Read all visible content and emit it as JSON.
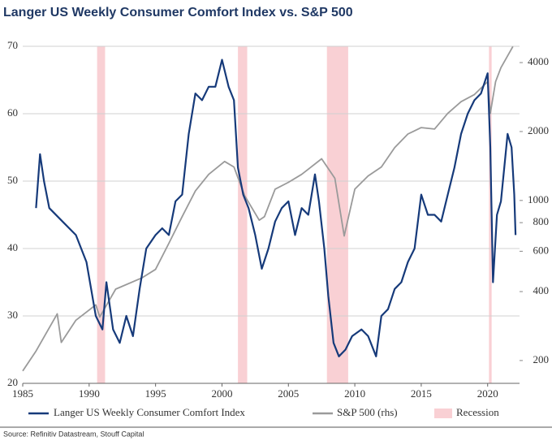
{
  "chart_data": {
    "type": "line",
    "title": "Langer US Weekly Consumer Comfort Index vs. S&P 500",
    "source": "Source: Refinitiv Datastream, Stouff Capital",
    "xlim": [
      1985,
      2022.4
    ],
    "xticks": [
      1985,
      1990,
      1995,
      2000,
      2005,
      2010,
      2015,
      2020
    ],
    "ylim": [
      20,
      70
    ],
    "yticks": [
      20,
      30,
      40,
      50,
      60,
      70
    ],
    "y2lim": [
      159,
      4712
    ],
    "y2ticks": [
      200,
      400,
      600,
      800,
      1000,
      2000,
      4000
    ],
    "y2log": true,
    "grid": true,
    "recession_name": "Recession",
    "recession_color": "#f9d0d4",
    "recessions": [
      [
        1990.6,
        1991.2
      ],
      [
        2001.2,
        2001.9
      ],
      [
        2007.9,
        2009.5
      ],
      [
        2020.1,
        2020.3
      ]
    ],
    "series": [
      {
        "name": "Langer US Weekly Consumer Comfort Index",
        "color": "#163a7a",
        "x": [
          1986.0,
          1986.3,
          1986.6,
          1987,
          1988,
          1989,
          1989.8,
          1990.5,
          1991.0,
          1991.3,
          1991.8,
          1992.3,
          1992.8,
          1993.3,
          1993.8,
          1994.3,
          1995,
          1995.5,
          1996,
          1996.5,
          1997,
          1997.5,
          1998,
          1998.5,
          1999,
          1999.5,
          2000,
          2000.5,
          2000.9,
          2001.2,
          2001.6,
          2002,
          2002.5,
          2003,
          2003.5,
          2004,
          2004.5,
          2005,
          2005.5,
          2006,
          2006.5,
          2007,
          2007.3,
          2007.7,
          2008,
          2008.4,
          2008.8,
          2009.3,
          2009.8,
          2010.5,
          2011,
          2011.6,
          2012,
          2012.5,
          2013,
          2013.5,
          2014,
          2014.5,
          2015,
          2015.5,
          2016,
          2016.5,
          2017,
          2017.5,
          2018,
          2018.5,
          2019,
          2019.5,
          2020.0,
          2020.2,
          2020.4,
          2020.7,
          2021,
          2021.5,
          2021.8,
          2022.0,
          2022.1
        ],
        "values": [
          46,
          54,
          50,
          46,
          44,
          42,
          38,
          30,
          28,
          35,
          28,
          26,
          30,
          27,
          34,
          40,
          42,
          43,
          42,
          47,
          48,
          57,
          63,
          62,
          64,
          64,
          68,
          64,
          62,
          52,
          48,
          46,
          42,
          37,
          40,
          44,
          46,
          47,
          42,
          46,
          45,
          51,
          47,
          40,
          33,
          26,
          24,
          25,
          27,
          28,
          27,
          24,
          30,
          31,
          34,
          35,
          38,
          40,
          48,
          45,
          45,
          44,
          48,
          52,
          57,
          60,
          62,
          63,
          66,
          55,
          35,
          45,
          47,
          57,
          55,
          48,
          42
        ]
      },
      {
        "name": "S&P 500 (rhs)",
        "color": "#9a9a9a",
        "axis": "y2",
        "x": [
          1985,
          1986,
          1987.6,
          1987.9,
          1989,
          1990.5,
          1990.8,
          1992,
          1994,
          1995,
          1996,
          1997,
          1998,
          1999,
          2000.2,
          2000.9,
          2001.7,
          2002.8,
          2003.2,
          2004,
          2005,
          2006,
          2007.5,
          2008.5,
          2009.2,
          2010,
          2011,
          2012,
          2013,
          2014,
          2015,
          2016,
          2017,
          2018,
          2019,
          2020.0,
          2020.2,
          2020.6,
          2021,
          2021.9
        ],
        "values": [
          180,
          220,
          320,
          240,
          300,
          350,
          310,
          410,
          460,
          500,
          650,
          850,
          1100,
          1300,
          1480,
          1400,
          1050,
          820,
          850,
          1120,
          1200,
          1300,
          1520,
          1250,
          700,
          1120,
          1280,
          1400,
          1700,
          1950,
          2080,
          2050,
          2400,
          2700,
          2900,
          3300,
          2400,
          3300,
          3800,
          4700
        ]
      }
    ]
  }
}
